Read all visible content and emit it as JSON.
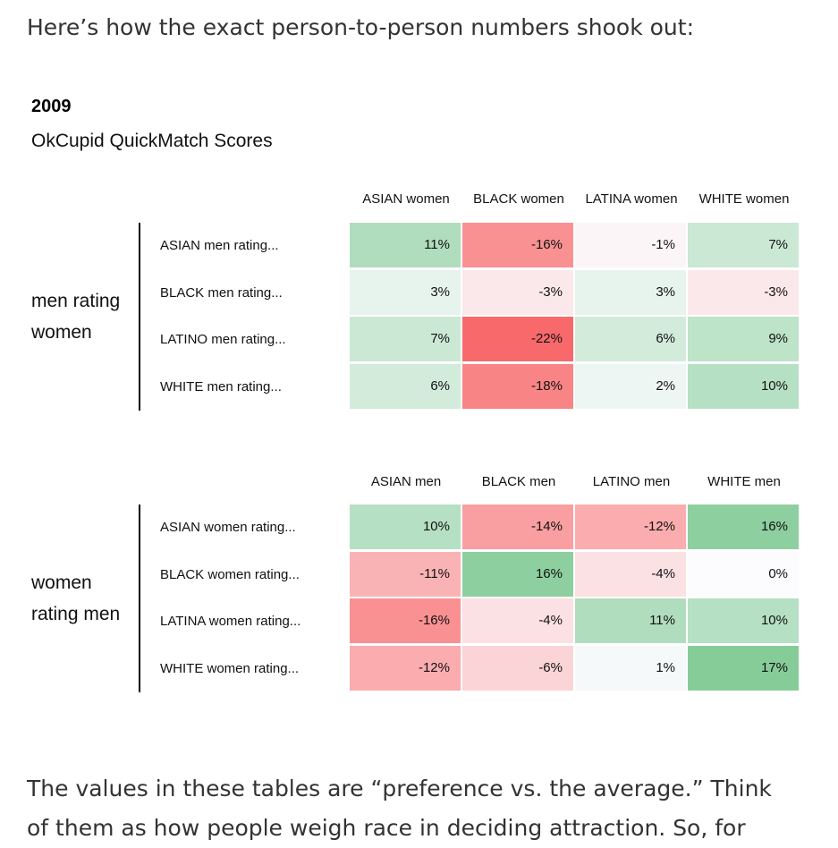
{
  "intro_text": "Here’s how the exact person-to-person numbers shook out:",
  "outro_lines": [
    "The values in these tables are “preference vs. the average.” Think",
    "of them as how people weigh race in deciding attraction. So, for"
  ],
  "chart_data": {
    "type": "heatmap",
    "year": "2009",
    "title": "OkCupid QuickMatch Scores",
    "tables": [
      {
        "group_label": [
          "men rating",
          "women"
        ],
        "columns": [
          "ASIAN women",
          "BLACK women",
          "LATINA women",
          "WHITE women"
        ],
        "rows": [
          "ASIAN men rating...",
          "BLACK men rating...",
          "LATINO men rating...",
          "WHITE men rating..."
        ],
        "values": [
          [
            11,
            -16,
            -1,
            7
          ],
          [
            3,
            -3,
            3,
            -3
          ],
          [
            7,
            -22,
            6,
            9
          ],
          [
            6,
            -18,
            2,
            10
          ]
        ]
      },
      {
        "group_label": [
          "women",
          "rating men"
        ],
        "columns": [
          "ASIAN men",
          "BLACK men",
          "LATINO men",
          "WHITE men"
        ],
        "rows": [
          "ASIAN women rating...",
          "BLACK women rating...",
          "LATINA women rating...",
          "WHITE women rating..."
        ],
        "values": [
          [
            10,
            -14,
            -12,
            16
          ],
          [
            -11,
            16,
            -4,
            0
          ],
          [
            -16,
            -4,
            11,
            10
          ],
          [
            -12,
            -6,
            1,
            17
          ]
        ]
      }
    ],
    "value_suffix": "%",
    "colors": {
      "positive": "#63be7b",
      "negative": "#f8696b",
      "neutral": "#fcfcff"
    }
  }
}
